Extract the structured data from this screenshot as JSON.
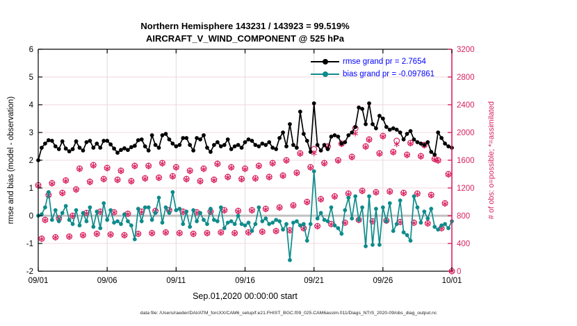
{
  "chart_data": {
    "type": "line",
    "title1": "Northern Hemisphere 143231 / 143923 = 99.519%",
    "title2": "AIRCRAFT_V_WIND_COMPONENT @ 525 hPa",
    "xlabel": "Sep.01,2020 00:00:00 start",
    "ylabel_left": "rmse and bias (model - observation)",
    "ylabel_right": "# of obs: o=possible; *=assimilated",
    "ylim_left": [
      -2,
      6
    ],
    "ylim_right": [
      0,
      3200
    ],
    "yticks_left": [
      -2,
      -1,
      0,
      1,
      2,
      3,
      4,
      5,
      6
    ],
    "yticks_right": [
      0,
      400,
      800,
      1200,
      1600,
      2000,
      2400,
      2800,
      3200
    ],
    "xtick_labels": [
      "09/01",
      "09/06",
      "09/11",
      "09/16",
      "09/21",
      "09/26",
      "10/01"
    ],
    "xtick_days": [
      0,
      5,
      10,
      15,
      20,
      25,
      30
    ],
    "x_start": "09/01/2020 00:00Z",
    "x_step_hours": 6,
    "grid": true,
    "legend_position": "top-right-inside",
    "legend_text_color": "#0000ff",
    "zero_line_color": "#c0c0c0",
    "series": [
      {
        "name": "rmse",
        "label": "rmse grand pr = 2.7654",
        "grand_value": 2.7654,
        "color": "#000000",
        "axis": "left",
        "values": [
          2.0,
          2.45,
          2.6,
          2.72,
          2.7,
          2.5,
          2.4,
          2.68,
          2.42,
          2.32,
          2.4,
          2.68,
          2.45,
          2.35,
          2.65,
          2.7,
          2.45,
          2.6,
          2.45,
          2.7,
          2.7,
          2.57,
          2.42,
          2.27,
          2.37,
          2.43,
          2.37,
          2.47,
          2.52,
          2.72,
          2.75,
          2.5,
          2.35,
          2.9,
          2.55,
          2.45,
          2.9,
          2.95,
          2.75,
          2.6,
          2.5,
          2.55,
          2.8,
          2.8,
          2.55,
          2.35,
          2.8,
          2.75,
          2.9,
          2.45,
          2.3,
          2.55,
          2.65,
          2.5,
          2.55,
          2.75,
          2.4,
          2.5,
          2.55,
          2.45,
          2.65,
          2.75,
          2.7,
          2.55,
          2.5,
          2.6,
          2.55,
          2.65,
          2.45,
          2.4,
          2.8,
          3.0,
          2.5,
          3.3,
          2.55,
          2.45,
          3.75,
          2.95,
          2.7,
          2.3,
          4.05,
          2.55,
          2.35,
          2.55,
          2.4,
          2.85,
          2.9,
          2.85,
          2.6,
          2.65,
          2.9,
          3.0,
          3.2,
          3.9,
          3.85,
          3.3,
          4.05,
          3.3,
          3.15,
          3.6,
          3.5,
          3.2,
          3.1,
          3.15,
          3.1,
          3.0,
          2.75,
          2.95,
          3.05,
          2.75,
          2.65,
          2.6,
          2.55,
          2.65,
          2.3,
          2.2,
          3.0,
          2.8,
          2.6,
          2.5,
          2.45
        ]
      },
      {
        "name": "bias",
        "label": "bias grand pr = -0.097861",
        "grand_value": -0.097861,
        "color": "#0e8b8b",
        "axis": "left",
        "values": [
          0.0,
          0.05,
          0.3,
          0.85,
          -0.15,
          0.2,
          -0.2,
          0.1,
          0.35,
          -0.15,
          -0.3,
          0.2,
          -0.35,
          0.1,
          -0.2,
          0.3,
          -0.4,
          0.15,
          -0.45,
          0.45,
          -0.15,
          0.2,
          -0.25,
          -0.2,
          -0.3,
          0.05,
          -0.2,
          -0.35,
          -0.85,
          0.25,
          -0.2,
          0.3,
          0.3,
          -0.15,
          0.1,
          0.65,
          -0.25,
          0.3,
          0.1,
          0.85,
          0.2,
          0.25,
          -0.3,
          0.15,
          -0.4,
          0.2,
          -0.2,
          0.1,
          -0.15,
          -0.3,
          0.25,
          -0.15,
          -0.2,
          0.3,
          -0.45,
          -0.25,
          -0.2,
          -0.3,
          0.0,
          -0.3,
          -0.35,
          -0.25,
          -0.55,
          -0.3,
          0.3,
          -0.2,
          -0.1,
          -0.3,
          -0.25,
          -0.15,
          -0.2,
          -0.5,
          -0.3,
          -1.6,
          -0.25,
          -0.2,
          -0.35,
          -0.3,
          -0.9,
          -0.3,
          1.6,
          -0.1,
          0.1,
          -0.15,
          -0.2,
          0.3,
          -0.35,
          -0.45,
          -0.65,
          0.2,
          0.65,
          -0.1,
          0.7,
          -0.15,
          0.3,
          -1.1,
          0.7,
          -1.05,
          0.25,
          -1.05,
          0.3,
          -0.2,
          0.45,
          -0.55,
          -0.3,
          0.55,
          -0.6,
          -0.7,
          -0.9,
          0.7,
          0.3,
          -0.25,
          0.15,
          -0.1,
          0.25,
          -0.4,
          -0.5,
          -0.35,
          -0.3,
          -0.45,
          -0.2
        ]
      }
    ],
    "obs_counts": {
      "color": "#d9215f",
      "axis": "right",
      "possible_marker": "o",
      "assimilated_marker": "*",
      "possible": [
        1240,
        470,
        740,
        1100,
        1270,
        490,
        760,
        1130,
        1310,
        500,
        800,
        1180,
        1480,
        520,
        840,
        1290,
        1530,
        540,
        860,
        1330,
        1490,
        530,
        850,
        1320,
        1450,
        520,
        830,
        1300,
        1520,
        540,
        860,
        1340,
        1520,
        550,
        870,
        1350,
        1560,
        560,
        880,
        1370,
        1500,
        550,
        860,
        1330,
        1450,
        540,
        850,
        1300,
        1480,
        550,
        860,
        1320,
        1550,
        560,
        880,
        1360,
        1500,
        550,
        870,
        1330,
        1480,
        560,
        880,
        1340,
        1520,
        570,
        900,
        1360,
        1560,
        580,
        920,
        1380,
        1600,
        590,
        950,
        1420,
        1700,
        620,
        1000,
        1500,
        1760,
        650,
        1040,
        1560,
        1800,
        680,
        1080,
        1600,
        1840,
        700,
        1120,
        1650,
        2060,
        740,
        1160,
        1800,
        1900,
        720,
        1140,
        1700,
        1950,
        730,
        1150,
        1720,
        1880,
        710,
        1130,
        1680,
        1850,
        700,
        1120,
        1660,
        1820,
        690,
        1100,
        1620,
        1600,
        620,
        980,
        1400,
        0
      ],
      "assimilated": [
        1232,
        465,
        735,
        1093,
        1262,
        486,
        755,
        1122,
        1302,
        496,
        794,
        1172,
        1471,
        516,
        835,
        1282,
        1521,
        536,
        854,
        1322,
        1481,
        526,
        845,
        1312,
        1442,
        515,
        824,
        1292,
        1512,
        536,
        853,
        1332,
        1512,
        546,
        864,
        1342,
        1551,
        556,
        873,
        1362,
        1492,
        546,
        853,
        1322,
        1442,
        536,
        844,
        1292,
        1471,
        546,
        853,
        1312,
        1541,
        556,
        872,
        1352,
        1492,
        546,
        862,
        1322,
        1471,
        556,
        873,
        1332,
        1512,
        566,
        892,
        1352,
        1551,
        576,
        913,
        1372,
        1592,
        586,
        943,
        1412,
        1691,
        616,
        992,
        1491,
        1700,
        645,
        1032,
        1551,
        1791,
        675,
        1072,
        1591,
        1832,
        695,
        1112,
        1641,
        1985,
        735,
        1152,
        1791,
        1891,
        715,
        1132,
        1691,
        1941,
        725,
        1142,
        1711,
        1830,
        705,
        1122,
        1671,
        1841,
        695,
        1112,
        1651,
        1812,
        685,
        1092,
        1611,
        1591,
        615,
        972,
        1391,
        0
      ]
    },
    "grid_colors": {
      "horizontal": "#f2d7de",
      "vertical": "#dcdcdc"
    }
  },
  "footer": {
    "datafile": "data file: /Users/raeder/DAI/ATM_forcXX/CAM6_setup/f.e21.FHIST_BGC.f09_025.CAM6assim.011/Diags_NTrS_2020-09/obs_diag_output.nc"
  }
}
